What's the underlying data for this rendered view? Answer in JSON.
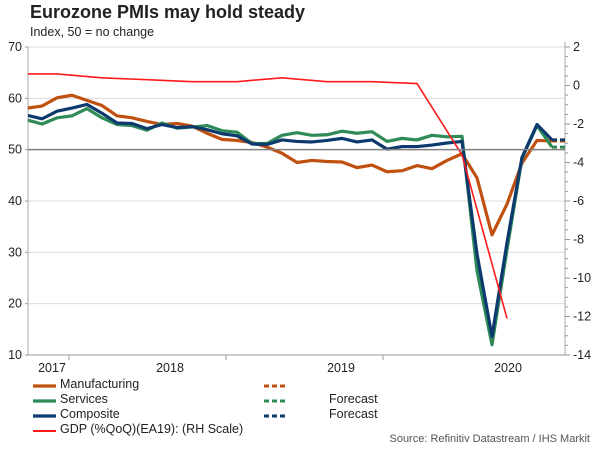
{
  "title": "Eurozone PMIs may hold steady",
  "subtitle": "Index, 50 = no change",
  "source": "Source: Refinitiv Datastream / IHS Markit",
  "chart_data": {
    "type": "line",
    "title": "Eurozone PMIs may hold steady",
    "subtitle": "Index, 50 = no change",
    "months": [
      "2017-09",
      "2017-10",
      "2017-11",
      "2017-12",
      "2018-01",
      "2018-02",
      "2018-03",
      "2018-04",
      "2018-05",
      "2018-06",
      "2018-07",
      "2018-08",
      "2018-09",
      "2018-10",
      "2018-11",
      "2018-12",
      "2019-01",
      "2019-02",
      "2019-03",
      "2019-04",
      "2019-05",
      "2019-06",
      "2019-07",
      "2019-08",
      "2019-09",
      "2019-10",
      "2019-11",
      "2019-12",
      "2020-01",
      "2020-02",
      "2020-03",
      "2020-04",
      "2020-05",
      "2020-06",
      "2020-07",
      "2020-08",
      "2020-09"
    ],
    "x_tick_labels": [
      "2017",
      "2018",
      "2019",
      "2020"
    ],
    "left_axis": {
      "ylim": [
        10,
        70
      ],
      "ticks": [
        10,
        20,
        30,
        40,
        50,
        60,
        70
      ],
      "reference_line": 50
    },
    "right_axis": {
      "ylim": [
        -14,
        2
      ],
      "ticks": [
        -14,
        -12,
        -10,
        -8,
        -6,
        -4,
        -2,
        0,
        2
      ]
    },
    "series": [
      {
        "name": "Manufacturing",
        "color": "#c0500f",
        "axis": "left",
        "values": [
          58.1,
          58.5,
          60.1,
          60.6,
          59.6,
          58.6,
          56.6,
          56.2,
          55.5,
          54.9,
          55.1,
          54.6,
          53.2,
          52.0,
          51.8,
          51.4,
          50.5,
          49.3,
          47.5,
          47.9,
          47.7,
          47.6,
          46.5,
          47.0,
          45.7,
          45.9,
          46.9,
          46.3,
          47.9,
          49.2,
          44.5,
          33.4,
          39.4,
          47.4,
          51.8,
          51.7
        ],
        "forecast_label": "",
        "forecast": [
          51.7,
          51.7
        ]
      },
      {
        "name": "Services",
        "color": "#2e8a57",
        "axis": "left",
        "values": [
          55.8,
          55.0,
          56.2,
          56.6,
          58.0,
          56.2,
          54.9,
          54.7,
          53.8,
          55.2,
          54.2,
          54.4,
          54.7,
          53.7,
          53.4,
          51.2,
          51.2,
          52.8,
          53.3,
          52.8,
          52.9,
          53.6,
          53.2,
          53.5,
          51.6,
          52.2,
          51.9,
          52.8,
          52.5,
          52.6,
          26.4,
          12.0,
          30.5,
          48.3,
          54.7,
          50.5
        ],
        "forecast_label": "Forecast",
        "forecast": [
          50.5,
          50.5
        ]
      },
      {
        "name": "Composite",
        "color": "#0d3a6e",
        "axis": "left",
        "values": [
          56.7,
          56.0,
          57.5,
          58.1,
          58.8,
          57.1,
          55.2,
          55.1,
          54.1,
          54.9,
          54.3,
          54.5,
          53.9,
          53.1,
          52.7,
          51.1,
          51.0,
          51.9,
          51.6,
          51.5,
          51.8,
          52.2,
          51.5,
          51.9,
          50.1,
          50.6,
          50.6,
          50.9,
          51.3,
          51.6,
          29.7,
          13.6,
          31.9,
          48.5,
          54.9,
          51.9
        ],
        "forecast_label": "Forecast",
        "forecast": [
          51.9,
          51.9
        ]
      },
      {
        "name": "GDP (%QoQ)(EA19): (RH Scale)",
        "color": "#ff1a1a",
        "axis": "right",
        "quarter_month_index": [
          0,
          2,
          5,
          8,
          11,
          14,
          17,
          20,
          23,
          26,
          29,
          32
        ],
        "values": [
          0.6,
          0.6,
          0.4,
          0.3,
          0.2,
          0.2,
          0.4,
          0.2,
          0.2,
          0.1,
          -3.6,
          -12.1
        ]
      }
    ]
  }
}
